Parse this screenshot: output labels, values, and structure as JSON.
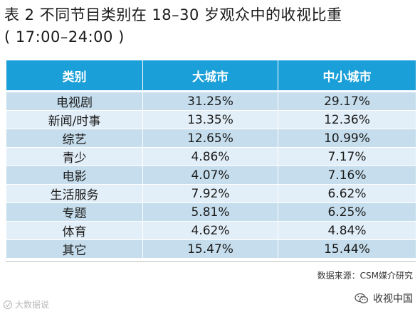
{
  "chart_data": {
    "type": "table",
    "title": "表 2  不同节目类别在 18–30 岁观众中的收视比重",
    "subtitle": "( 17:00–24:00 )",
    "columns": [
      "类别",
      "大城市",
      "中小城市"
    ],
    "rows": [
      {
        "category": "电视剧",
        "big_city": "31.25%",
        "small_city": "29.17%"
      },
      {
        "category": "新闻/时事",
        "big_city": "13.35%",
        "small_city": "12.36%"
      },
      {
        "category": "综艺",
        "big_city": "12.65%",
        "small_city": "10.99%"
      },
      {
        "category": "青少",
        "big_city": "4.86%",
        "small_city": "7.17%"
      },
      {
        "category": "电影",
        "big_city": "4.07%",
        "small_city": "7.16%"
      },
      {
        "category": "生活服务",
        "big_city": "7.92%",
        "small_city": "6.62%"
      },
      {
        "category": "专题",
        "big_city": "5.81%",
        "small_city": "6.25%"
      },
      {
        "category": "体育",
        "big_city": "4.62%",
        "small_city": "4.84%"
      },
      {
        "category": "其它",
        "big_city": "15.47%",
        "small_city": "15.44%"
      }
    ],
    "colors": {
      "header": "#1a9fd8",
      "row_odd": "#c5ddec",
      "row_even": "#e2eff8"
    }
  },
  "footer": {
    "source": "数据来源：CSM媒介研究",
    "watermark_right": "收视中国",
    "watermark_left": "大数据说",
    "watermark_right_icon": "wechat-icon",
    "watermark_left_icon": "logo-icon"
  }
}
